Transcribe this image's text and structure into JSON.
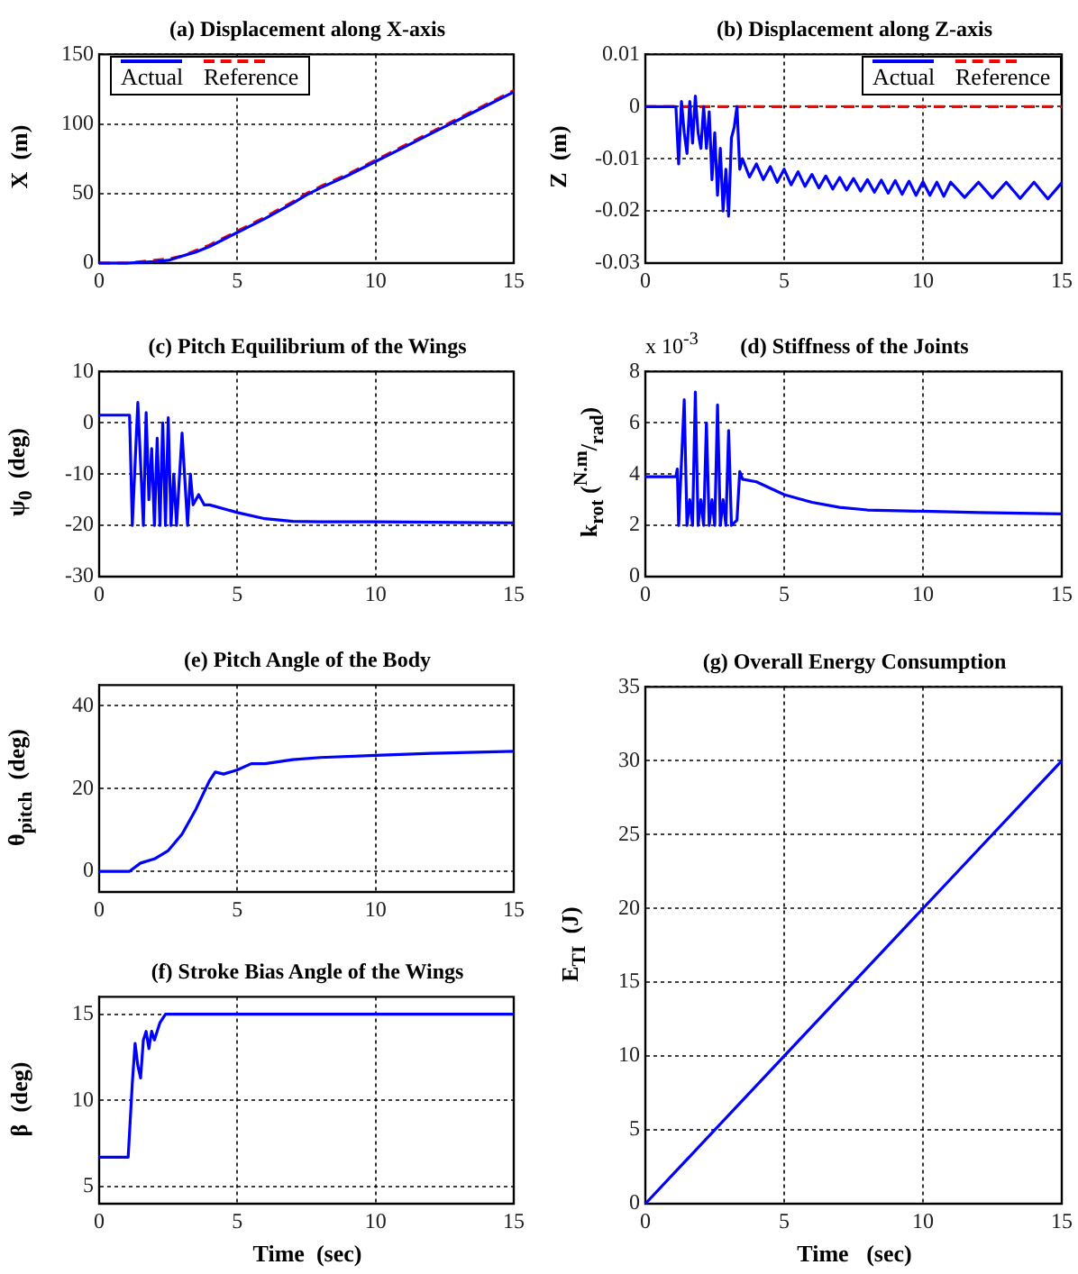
{
  "chart_data": [
    {
      "type": "line",
      "title": "(a) Displacement along X-axis",
      "ylabel": "X  (m)",
      "xlim": [
        0,
        15
      ],
      "xticks": [
        0,
        5,
        10,
        15
      ],
      "ylim": [
        0,
        150
      ],
      "yticks": [
        0,
        50,
        100,
        150
      ],
      "grid": true,
      "legend": "top left",
      "series": [
        {
          "name": "Actual",
          "color": "#0000ff",
          "line_style": "solid",
          "x": [
            0,
            1,
            2,
            2.5,
            3,
            3.5,
            4,
            4.5,
            5,
            6,
            7,
            7.5,
            8,
            9,
            10,
            11,
            12,
            12.5,
            13,
            14,
            15
          ],
          "values": [
            0,
            0,
            1,
            2,
            5,
            8,
            12,
            17,
            22,
            32,
            43,
            49,
            54,
            63,
            73,
            83,
            93,
            98,
            103,
            113,
            123
          ]
        },
        {
          "name": "Reference",
          "color": "#ff0000",
          "line_style": "dashed",
          "x": [
            0,
            1,
            2,
            2.5,
            3,
            3.5,
            4,
            4.5,
            5,
            6,
            7,
            7.5,
            8,
            9,
            10,
            11,
            12,
            12.5,
            13,
            14,
            15
          ],
          "values": [
            0,
            0,
            2,
            3,
            5,
            9,
            13,
            18,
            23,
            33,
            44,
            50,
            55,
            64,
            74,
            84,
            94,
            99,
            104,
            114,
            124
          ]
        }
      ]
    },
    {
      "type": "line",
      "title": "(b) Displacement along Z-axis",
      "ylabel": "Z  (m)",
      "xlim": [
        0,
        15
      ],
      "xticks": [
        0,
        5,
        10,
        15
      ],
      "ylim": [
        -0.03,
        0.01
      ],
      "yticks": [
        -0.03,
        -0.02,
        -0.01,
        0,
        0.01
      ],
      "grid": true,
      "legend": "top right",
      "series": [
        {
          "name": "Actual",
          "color": "#0000ff",
          "line_style": "solid",
          "x": [
            0,
            1.1,
            1.2,
            1.3,
            1.4,
            1.5,
            1.6,
            1.7,
            1.8,
            1.9,
            2.0,
            2.1,
            2.2,
            2.3,
            2.4,
            2.5,
            2.6,
            2.7,
            2.8,
            2.9,
            3.0,
            3.1,
            3.2,
            3.3,
            3.4,
            3.5,
            3.75,
            4.0,
            4.25,
            4.5,
            4.75,
            5.0,
            5.25,
            5.5,
            5.75,
            6.0,
            6.25,
            6.5,
            6.75,
            7.0,
            7.25,
            7.5,
            7.75,
            8.0,
            8.25,
            8.5,
            8.75,
            9.0,
            9.25,
            9.5,
            9.75,
            10,
            10.25,
            10.5,
            10.75,
            11,
            11.5,
            12,
            12.5,
            13,
            13.5,
            14,
            14.5,
            15
          ],
          "values": [
            0,
            0,
            -0.011,
            0.001,
            -0.005,
            -0.009,
            0.001,
            -0.007,
            0.002,
            -0.005,
            -0.008,
            0.0,
            -0.008,
            -0.001,
            -0.014,
            -0.005,
            -0.017,
            -0.008,
            -0.02,
            -0.012,
            -0.021,
            -0.006,
            -0.004,
            0.0,
            -0.012,
            -0.01,
            -0.0135,
            -0.011,
            -0.014,
            -0.0115,
            -0.0145,
            -0.012,
            -0.015,
            -0.0125,
            -0.0153,
            -0.013,
            -0.0156,
            -0.0133,
            -0.0158,
            -0.0136,
            -0.016,
            -0.0138,
            -0.0162,
            -0.014,
            -0.0164,
            -0.0141,
            -0.0166,
            -0.0142,
            -0.0168,
            -0.0143,
            -0.017,
            -0.0144,
            -0.017,
            -0.0145,
            -0.0172,
            -0.0145,
            -0.0174,
            -0.0145,
            -0.0175,
            -0.0145,
            -0.0176,
            -0.0145,
            -0.0177,
            -0.0146
          ]
        },
        {
          "name": "Reference",
          "color": "#ff0000",
          "line_style": "dashed",
          "x": [
            0,
            15
          ],
          "values": [
            0,
            0
          ]
        }
      ]
    },
    {
      "type": "line",
      "title": "(c) Pitch Equilibrium of the Wings",
      "ylabel": "ψ$_{0}$  (deg)",
      "xlim": [
        0,
        15
      ],
      "xticks": [
        0,
        5,
        10,
        15
      ],
      "ylim": [
        -30,
        10
      ],
      "yticks": [
        -30,
        -20,
        -10,
        0,
        10
      ],
      "grid": true,
      "series": [
        {
          "color": "#0000ff",
          "line_style": "solid",
          "x": [
            0,
            1.1,
            1.2,
            1.4,
            1.6,
            1.7,
            1.8,
            1.9,
            2.0,
            2.1,
            2.2,
            2.3,
            2.4,
            2.5,
            2.6,
            2.7,
            2.8,
            3.0,
            3.2,
            3.3,
            3.4,
            3.6,
            3.8,
            4,
            5,
            6,
            7,
            8,
            10,
            15
          ],
          "values": [
            1.5,
            1.5,
            -20,
            4,
            -20,
            2,
            -15,
            -5,
            -20,
            -3,
            -20,
            0,
            -20,
            1,
            -20,
            -10,
            -20,
            -2,
            -20,
            -10,
            -16,
            -14,
            -16,
            -16,
            -17.5,
            -18.7,
            -19.2,
            -19.3,
            -19.3,
            -19.5
          ]
        }
      ]
    },
    {
      "type": "line",
      "title": "(d) Stiffness of the Joints",
      "ylabel": "k$_{rot}$ ($^{N.m}$/$_{rad}$)",
      "annotations": [
        "x 10$^{-3}$"
      ],
      "xlim": [
        0,
        15
      ],
      "xticks": [
        0,
        5,
        10,
        15
      ],
      "ylim": [
        0,
        8
      ],
      "yticks": [
        0,
        2,
        4,
        6,
        8
      ],
      "grid": true,
      "series": [
        {
          "color": "#0000ff",
          "line_style": "solid",
          "x": [
            0,
            1.1,
            1.15,
            1.2,
            1.4,
            1.5,
            1.6,
            1.7,
            1.8,
            1.9,
            2.0,
            2.1,
            2.2,
            2.3,
            2.4,
            2.5,
            2.6,
            2.7,
            2.8,
            2.9,
            3.0,
            3.1,
            3.3,
            3.4,
            3.5,
            4,
            5,
            6,
            7,
            8,
            10,
            12,
            15
          ],
          "values": [
            3.9,
            3.9,
            4.2,
            2,
            6.9,
            2,
            3,
            2,
            7.2,
            2,
            3,
            2,
            6,
            2,
            3,
            2,
            6.7,
            2,
            3,
            2,
            5.7,
            2,
            2.2,
            4.1,
            3.8,
            3.7,
            3.2,
            2.9,
            2.7,
            2.6,
            2.55,
            2.5,
            2.45
          ]
        }
      ]
    },
    {
      "type": "line",
      "title": "(e) Pitch Angle of the Body",
      "ylabel": "θ$_{pitch}$  (deg)",
      "xlim": [
        0,
        15
      ],
      "xticks": [
        0,
        5,
        10,
        15
      ],
      "ylim": [
        -5,
        45
      ],
      "yticks": [
        0,
        20,
        40
      ],
      "grid": true,
      "series": [
        {
          "color": "#0000ff",
          "line_style": "solid",
          "x": [
            0,
            1.1,
            1.5,
            2,
            2.5,
            3,
            3.5,
            4,
            4.2,
            4.5,
            5,
            5.5,
            6,
            7,
            8,
            10,
            12,
            15
          ],
          "values": [
            0,
            0,
            2,
            3,
            5,
            9,
            15,
            22,
            24,
            23.5,
            24.5,
            26,
            26,
            27,
            27.5,
            28,
            28.5,
            29
          ]
        }
      ]
    },
    {
      "type": "line",
      "title": "(f) Stroke Bias Angle of the Wings",
      "xlabel": "Time  (sec)",
      "ylabel": "β  (deg)",
      "xlim": [
        0,
        15
      ],
      "xticks": [
        0,
        5,
        10,
        15
      ],
      "ylim": [
        4,
        16
      ],
      "yticks": [
        5,
        10,
        15
      ],
      "grid": true,
      "series": [
        {
          "color": "#0000ff",
          "line_style": "solid",
          "x": [
            0,
            1.05,
            1.2,
            1.3,
            1.4,
            1.5,
            1.6,
            1.7,
            1.8,
            1.9,
            2.0,
            2.2,
            2.4,
            15
          ],
          "values": [
            6.7,
            6.7,
            11,
            13.3,
            12,
            11.3,
            13.5,
            14,
            13,
            14,
            13.5,
            14.5,
            15,
            15
          ]
        }
      ]
    },
    {
      "type": "line",
      "title": "(g) Overall Energy Consumption",
      "xlabel": "Time   (sec)",
      "ylabel": "E$_{TI}$  (J)",
      "xlim": [
        0,
        15
      ],
      "xticks": [
        0,
        5,
        10,
        15
      ],
      "ylim": [
        0,
        35
      ],
      "yticks": [
        0,
        5,
        10,
        15,
        20,
        25,
        30,
        35
      ],
      "grid": true,
      "series": [
        {
          "color": "#0000ff",
          "line_style": "solid",
          "x": [
            0,
            5,
            10,
            15
          ],
          "values": [
            0,
            10,
            20,
            30
          ]
        }
      ]
    }
  ]
}
